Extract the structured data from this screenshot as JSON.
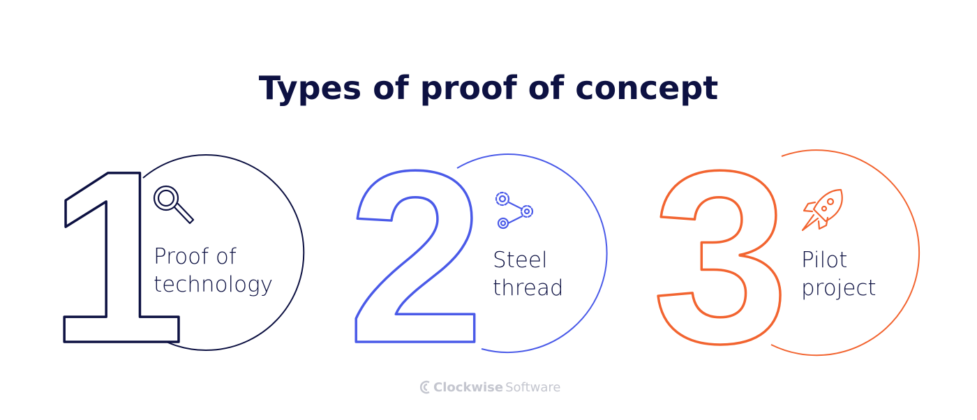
{
  "title": "Types of proof of concept",
  "items": [
    {
      "number": "1",
      "label": [
        "Proof of",
        "technology"
      ]
    },
    {
      "number": "2",
      "label": [
        "Steel",
        "thread"
      ]
    },
    {
      "number": "3",
      "label": [
        "Pilot",
        "project"
      ]
    }
  ],
  "logo": {
    "brand": "Clockwise",
    "suffix": "Software"
  }
}
